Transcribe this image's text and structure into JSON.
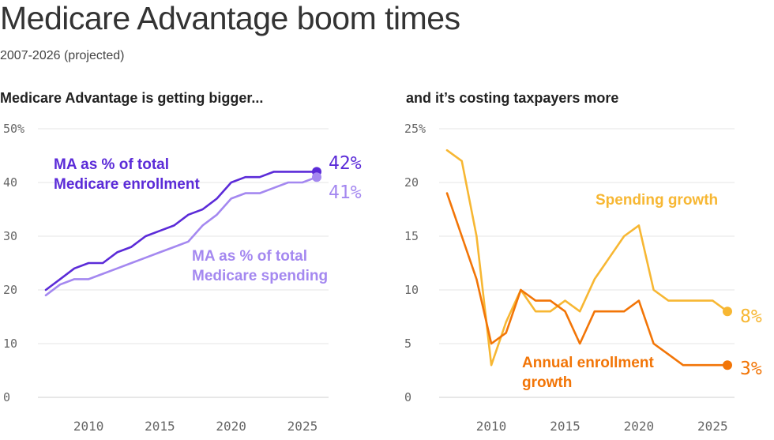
{
  "title": "Medicare Advantage boom times",
  "subtitle": "2007-2026 (projected)",
  "chart_data": [
    {
      "type": "line",
      "title": "Medicare Advantage is getting bigger...",
      "ylim": [
        0,
        50
      ],
      "xlim": [
        2007,
        2026
      ],
      "yticks": [
        0,
        10,
        20,
        30,
        40,
        50
      ],
      "ytick_labels": [
        "0",
        "10",
        "20",
        "30",
        "40",
        "50%"
      ],
      "xticks": [
        2010,
        2015,
        2020,
        2025
      ],
      "xtick_labels": [
        "2010",
        "2015",
        "2020",
        "2025"
      ],
      "grid": "horizontal",
      "legend": "direct labels",
      "series": [
        {
          "name": "MA as % of total Medicare enrollment",
          "label_lines": [
            "MA as % of total",
            "Medicare enrollment"
          ],
          "color": "#5b2bd8",
          "end_label": "42%",
          "x": [
            2007,
            2008,
            2009,
            2010,
            2011,
            2012,
            2013,
            2014,
            2015,
            2016,
            2017,
            2018,
            2019,
            2020,
            2021,
            2022,
            2023,
            2024,
            2025,
            2026
          ],
          "values": [
            20,
            22,
            24,
            25,
            25,
            27,
            28,
            30,
            31,
            32,
            34,
            35,
            37,
            40,
            41,
            41,
            42,
            42,
            42,
            42
          ]
        },
        {
          "name": "MA as % of total Medicare spending",
          "label_lines": [
            "MA as % of total",
            "Medicare spending"
          ],
          "color": "#a488f0",
          "end_label": "41%",
          "x": [
            2007,
            2008,
            2009,
            2010,
            2011,
            2012,
            2013,
            2014,
            2015,
            2016,
            2017,
            2018,
            2019,
            2020,
            2021,
            2022,
            2023,
            2024,
            2025,
            2026
          ],
          "values": [
            19,
            21,
            22,
            22,
            23,
            24,
            25,
            26,
            27,
            28,
            29,
            32,
            34,
            37,
            38,
            38,
            39,
            40,
            40,
            41
          ]
        }
      ]
    },
    {
      "type": "line",
      "title": "and it’s costing taxpayers more",
      "ylim": [
        0,
        25
      ],
      "xlim": [
        2007,
        2026
      ],
      "yticks": [
        0,
        5,
        10,
        15,
        20,
        25
      ],
      "ytick_labels": [
        "0",
        "5",
        "10",
        "15",
        "20",
        "25%"
      ],
      "xticks": [
        2010,
        2015,
        2020,
        2025
      ],
      "xtick_labels": [
        "2010",
        "2015",
        "2020",
        "2025"
      ],
      "grid": "horizontal",
      "legend": "direct labels",
      "series": [
        {
          "name": "Spending growth",
          "label_lines": [
            "Spending growth"
          ],
          "color": "#f7b733",
          "end_label": "8%",
          "x": [
            2007,
            2008,
            2009,
            2010,
            2011,
            2012,
            2013,
            2014,
            2015,
            2016,
            2017,
            2018,
            2019,
            2020,
            2021,
            2022,
            2023,
            2024,
            2025,
            2026
          ],
          "values": [
            23,
            22,
            15,
            3,
            7,
            10,
            8,
            8,
            9,
            8,
            11,
            13,
            15,
            16,
            10,
            9,
            9,
            9,
            9,
            8
          ]
        },
        {
          "name": "Annual enrollment growth",
          "label_lines": [
            "Annual enrollment",
            "growth"
          ],
          "color": "#f27507",
          "end_label": "3%",
          "x": [
            2007,
            2008,
            2009,
            2010,
            2011,
            2012,
            2013,
            2014,
            2015,
            2016,
            2017,
            2018,
            2019,
            2020,
            2021,
            2022,
            2023,
            2024,
            2025,
            2026
          ],
          "values": [
            19,
            15,
            11,
            5,
            6,
            10,
            9,
            9,
            8,
            5,
            8,
            8,
            8,
            9,
            5,
            4,
            3,
            3,
            3,
            3
          ]
        }
      ]
    }
  ]
}
